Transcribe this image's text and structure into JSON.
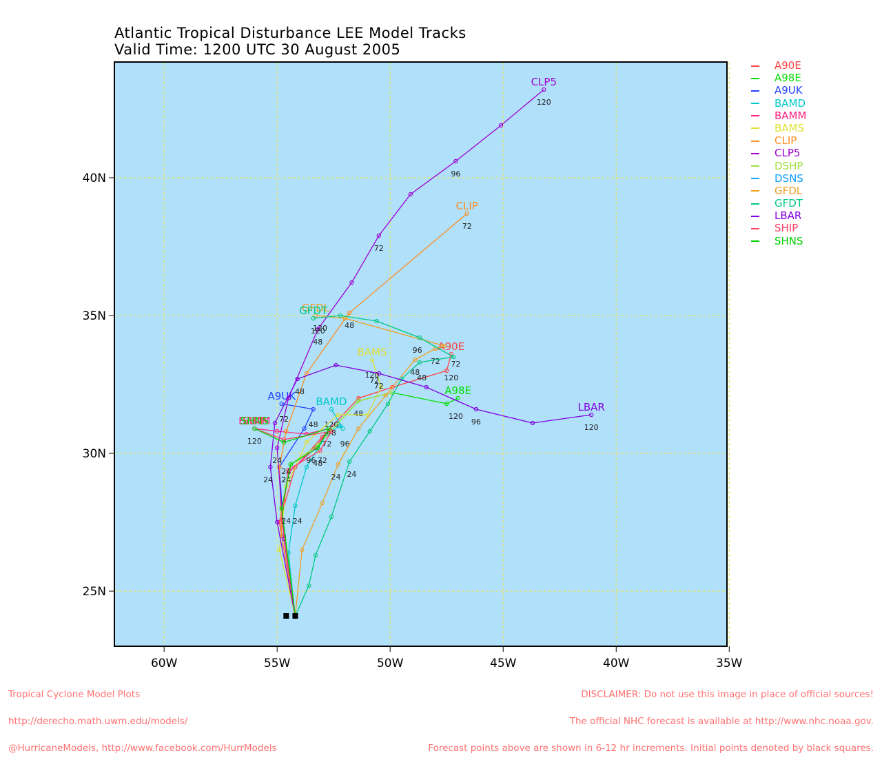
{
  "title": "Atlantic Tropical Disturbance LEE Model Tracks",
  "subtitle": "Valid Time: 1200 UTC 30 August 2005",
  "footer_left": [
    "Tropical Cyclone Model Plots",
    "http://derecho.math.uwm.edu/models/",
    "@HurricaneModels, http://www.facebook.com/HurrModels"
  ],
  "footer_right": [
    "DISCLAIMER: Do not use this image in place of official sources!",
    "The official NHC forecast is available at http://www.nhc.noaa.gov.",
    "Forecast points above are shown in 6-12 hr increments. Initial points denoted by black squares."
  ],
  "colors": {
    "ocean": "#b0e0fa",
    "grid": "#e8e870"
  },
  "chart_data": {
    "type": "scatter",
    "x_ticks": [
      {
        "v": -60,
        "label": "60W"
      },
      {
        "v": -55,
        "label": "55W"
      },
      {
        "v": -50,
        "label": "50W"
      },
      {
        "v": -45,
        "label": "45W"
      },
      {
        "v": -40,
        "label": "40W"
      },
      {
        "v": -35,
        "label": "35W"
      }
    ],
    "y_ticks": [
      {
        "v": 25,
        "label": "25N"
      },
      {
        "v": 30,
        "label": "30N"
      },
      {
        "v": 35,
        "label": "35N"
      },
      {
        "v": 40,
        "label": "40N"
      }
    ],
    "xlim": [
      -62.2,
      -35.1
    ],
    "ylim": [
      23.0,
      44.2
    ],
    "grid": true,
    "initial_points": [
      [
        -54.6,
        24.1
      ],
      [
        -54.2,
        24.1
      ]
    ],
    "series": [
      {
        "name": "A90E",
        "color": "#ff4040",
        "label_text": "A90E",
        "points": [
          [
            -54.2,
            24.1
          ],
          [
            -54.9,
            27.5
          ],
          [
            -54.2,
            29.5
          ],
          [
            -53.0,
            30.6
          ],
          [
            -51.4,
            32.0
          ],
          [
            -49.9,
            32.4
          ],
          [
            -47.5,
            33.0
          ],
          [
            -47.3,
            33.6
          ]
        ],
        "hours": [
          [
            "72",
            -47.1,
            33.4
          ],
          [
            "120",
            -47.3,
            32.9
          ]
        ]
      },
      {
        "name": "A98E",
        "color": "#00dd00",
        "label_text": "A98E",
        "points": [
          [
            -54.2,
            24.1
          ],
          [
            -54.8,
            28.0
          ],
          [
            -54.4,
            29.6
          ],
          [
            -53.2,
            30.3
          ],
          [
            -51.4,
            31.9
          ],
          [
            -49.9,
            32.2
          ],
          [
            -47.5,
            31.8
          ],
          [
            -47.0,
            32.0
          ]
        ],
        "hours": [
          [
            "24",
            -54.6,
            29.2
          ],
          [
            "48",
            -51.4,
            31.6
          ],
          [
            "120",
            -47.1,
            31.5
          ]
        ]
      },
      {
        "name": "A9UK",
        "color": "#2040ff",
        "label_text": "A9UK",
        "points": [
          [
            -54.2,
            24.1
          ],
          [
            -54.7,
            27.0
          ],
          [
            -54.9,
            29.5
          ],
          [
            -53.8,
            30.9
          ],
          [
            -53.4,
            31.6
          ],
          [
            -54.8,
            31.8
          ]
        ],
        "hours": [
          [
            "48",
            -53.4,
            31.2
          ],
          [
            "72",
            -54.7,
            31.4
          ]
        ]
      },
      {
        "name": "BAMD",
        "color": "#00c8c8",
        "label_text": "BAMD",
        "points": [
          [
            -54.2,
            24.1
          ],
          [
            -54.5,
            26.4
          ],
          [
            -54.2,
            28.1
          ],
          [
            -53.7,
            29.5
          ],
          [
            -52.8,
            30.7
          ],
          [
            -52.2,
            31.0
          ],
          [
            -52.1,
            30.9
          ],
          [
            -52.6,
            31.6
          ]
        ],
        "hours": [
          [
            "24",
            -54.1,
            27.7
          ],
          [
            "48",
            -52.6,
            30.9
          ],
          [
            "72",
            -52.8,
            30.5
          ],
          [
            "96",
            -52.0,
            30.5
          ],
          [
            "120",
            -52.6,
            31.2
          ]
        ]
      },
      {
        "name": "BAMM",
        "color": "#ff2080",
        "label_text": "BAMM",
        "points": [
          [
            -54.2,
            24.1
          ],
          [
            -54.8,
            27.6
          ],
          [
            -54.5,
            29.3
          ],
          [
            -53.3,
            30.2
          ],
          [
            -52.7,
            30.9
          ],
          [
            -53.7,
            30.7
          ],
          [
            -55.0,
            30.8
          ],
          [
            -56.0,
            30.9
          ]
        ],
        "hours": [
          [
            "24",
            -54.6,
            29.2
          ]
        ]
      },
      {
        "name": "BAMS",
        "color": "#e0e030",
        "label_text": "BAMS",
        "points": [
          [
            -54.2,
            24.1
          ],
          [
            -54.9,
            26.5
          ],
          [
            -54.6,
            28.8
          ],
          [
            -53.7,
            30.4
          ],
          [
            -52.3,
            31.4
          ],
          [
            -51.0,
            31.4
          ],
          [
            -50.4,
            32.4
          ],
          [
            -50.8,
            33.4
          ]
        ],
        "hours": [
          [
            "72",
            -50.7,
            32.8
          ],
          [
            "120",
            -50.8,
            33.0
          ]
        ]
      },
      {
        "name": "CLIP",
        "color": "#ff8c20",
        "label_text": "CLIP",
        "points": [
          [
            -54.2,
            24.1
          ],
          [
            -54.8,
            27.0
          ],
          [
            -54.9,
            29.5
          ],
          [
            -54.6,
            30.8
          ],
          [
            -53.7,
            32.9
          ],
          [
            -51.8,
            35.1
          ],
          [
            -46.6,
            38.7
          ]
        ],
        "hours": [
          [
            "48",
            -51.8,
            34.8
          ],
          [
            "72",
            -46.6,
            38.4
          ]
        ]
      },
      {
        "name": "CLP5",
        "color": "#a000d0",
        "label_text": "CLP5",
        "points": [
          [
            -54.2,
            24.1
          ],
          [
            -54.7,
            26.9
          ],
          [
            -55.0,
            30.2
          ],
          [
            -54.5,
            32.0
          ],
          [
            -53.2,
            34.5
          ],
          [
            -51.7,
            36.2
          ],
          [
            -50.5,
            37.9
          ],
          [
            -49.1,
            39.4
          ],
          [
            -47.1,
            40.6
          ],
          [
            -45.1,
            41.9
          ],
          [
            -43.2,
            43.2
          ]
        ],
        "hours": [
          [
            "24",
            -55.0,
            29.9
          ],
          [
            "48",
            -53.2,
            34.2
          ],
          [
            "72",
            -50.5,
            37.6
          ],
          [
            "96",
            -47.1,
            40.3
          ],
          [
            "120",
            -43.2,
            42.9
          ]
        ]
      },
      {
        "name": "DSHP",
        "color": "#a0e040",
        "label_text": "",
        "points": [
          [
            -54.2,
            24.1
          ],
          [
            -54.8,
            28.0
          ],
          [
            -54.4,
            29.6
          ],
          [
            -53.2,
            30.3
          ],
          [
            -51.4,
            31.9
          ],
          [
            -49.9,
            32.2
          ]
        ],
        "hours": []
      },
      {
        "name": "DSNS",
        "color": "#10a0ff",
        "label_text": "",
        "points": [],
        "hours": []
      },
      {
        "name": "GFDL",
        "color": "#f0a020",
        "label_text": "GFDL",
        "points": [
          [
            -54.2,
            24.1
          ],
          [
            -53.9,
            26.5
          ],
          [
            -53.0,
            28.2
          ],
          [
            -52.3,
            29.6
          ],
          [
            -51.4,
            30.9
          ],
          [
            -50.2,
            32.1
          ],
          [
            -48.9,
            33.4
          ],
          [
            -48.0,
            33.8
          ],
          [
            -47.6,
            33.9
          ],
          [
            -52.0,
            34.9
          ],
          [
            -53.3,
            35.0
          ]
        ],
        "hours": [
          [
            "24",
            -52.4,
            29.3
          ],
          [
            "48",
            -48.9,
            33.1
          ],
          [
            "72",
            -48.0,
            33.5
          ],
          [
            "120",
            -53.1,
            34.7
          ]
        ]
      },
      {
        "name": "GFDT",
        "color": "#00c880",
        "label_text": "GFDT",
        "points": [
          [
            -54.2,
            24.1
          ],
          [
            -53.6,
            25.2
          ],
          [
            -53.3,
            26.3
          ],
          [
            -52.6,
            27.7
          ],
          [
            -51.8,
            29.7
          ],
          [
            -50.9,
            30.8
          ],
          [
            -50.1,
            31.8
          ],
          [
            -49.5,
            32.7
          ],
          [
            -48.7,
            33.3
          ],
          [
            -47.2,
            33.5
          ],
          [
            -48.7,
            34.2
          ],
          [
            -50.6,
            34.8
          ],
          [
            -52.2,
            35.0
          ],
          [
            -53.4,
            34.9
          ]
        ],
        "hours": [
          [
            "24",
            -51.7,
            29.4
          ],
          [
            "48",
            -48.6,
            32.9
          ],
          [
            "96",
            -48.8,
            33.9
          ],
          [
            "120",
            -53.2,
            34.6
          ]
        ]
      },
      {
        "name": "LBAR",
        "color": "#8000e0",
        "label_text": "LBAR",
        "points": [
          [
            -54.2,
            24.1
          ],
          [
            -55.0,
            27.5
          ],
          [
            -55.3,
            29.5
          ],
          [
            -55.1,
            31.1
          ],
          [
            -54.1,
            32.7
          ],
          [
            -52.4,
            33.2
          ],
          [
            -50.5,
            32.9
          ],
          [
            -48.4,
            32.4
          ],
          [
            -46.2,
            31.6
          ],
          [
            -43.7,
            31.1
          ],
          [
            -41.1,
            31.4
          ]
        ],
        "hours": [
          [
            "24",
            -55.4,
            29.2
          ],
          [
            "48",
            -54.0,
            32.4
          ],
          [
            "72",
            -50.5,
            32.6
          ],
          [
            "96",
            -46.2,
            31.3
          ],
          [
            "120",
            -41.1,
            31.1
          ]
        ]
      },
      {
        "name": "SHIP",
        "color": "#ff4060",
        "label_text": "SHIP",
        "points": [
          [
            -54.2,
            24.1
          ],
          [
            -54.8,
            27.6
          ],
          [
            -54.5,
            29.4
          ],
          [
            -53.1,
            30.1
          ],
          [
            -52.6,
            30.8
          ],
          [
            -54.7,
            30.5
          ],
          [
            -56.0,
            30.9
          ]
        ],
        "hours": [
          [
            "24",
            -54.6,
            29.5
          ],
          [
            "96",
            -53.5,
            29.9
          ],
          [
            "120",
            -56.0,
            30.6
          ]
        ]
      },
      {
        "name": "SHNS",
        "color": "#00d000",
        "label_text": "SHNS",
        "points": [
          [
            -54.2,
            24.1
          ],
          [
            -54.8,
            28.0
          ],
          [
            -54.4,
            29.6
          ],
          [
            -53.2,
            30.2
          ],
          [
            -52.7,
            30.9
          ],
          [
            -54.7,
            30.4
          ],
          [
            -56.0,
            30.9
          ]
        ],
        "hours": [
          [
            "24",
            -54.6,
            27.7
          ],
          [
            "48",
            -53.2,
            29.8
          ],
          [
            "72",
            -53.0,
            29.9
          ]
        ]
      }
    ]
  }
}
